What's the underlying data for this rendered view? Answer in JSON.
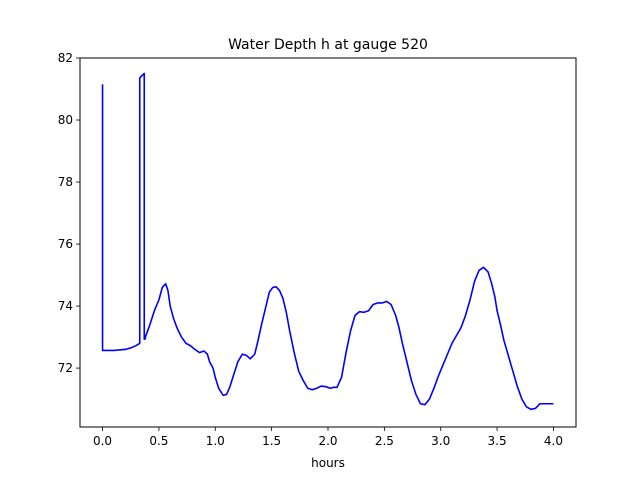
{
  "chart_data": {
    "type": "line",
    "title": "Water Depth h at gauge 520",
    "xlabel": "hours",
    "ylabel": "",
    "xlim": [
      -0.2,
      4.2
    ],
    "ylim": [
      70.1,
      82.0
    ],
    "xticks": [
      0.0,
      0.5,
      1.0,
      1.5,
      2.0,
      2.5,
      3.0,
      3.5,
      4.0
    ],
    "xtick_labels": [
      "0.0",
      "0.5",
      "1.0",
      "1.5",
      "2.0",
      "2.5",
      "3.0",
      "3.5",
      "4.0"
    ],
    "yticks": [
      72,
      74,
      76,
      78,
      80,
      82
    ],
    "ytick_labels": [
      "72",
      "74",
      "76",
      "78",
      "80",
      "82"
    ],
    "grid": false,
    "series": [
      {
        "color": "#0000ff",
        "x": [
          0.0,
          0.0,
          0.0,
          0.1,
          0.2,
          0.25,
          0.3,
          0.33,
          0.33,
          0.34,
          0.37,
          0.37,
          0.38,
          0.38,
          0.42,
          0.46,
          0.5,
          0.53,
          0.56,
          0.58,
          0.6,
          0.63,
          0.66,
          0.7,
          0.74,
          0.78,
          0.82,
          0.86,
          0.9,
          0.93,
          0.95,
          0.98,
          1.0,
          1.03,
          1.07,
          1.1,
          1.13,
          1.16,
          1.2,
          1.24,
          1.28,
          1.31,
          1.35,
          1.38,
          1.41,
          1.45,
          1.48,
          1.51,
          1.54,
          1.57,
          1.6,
          1.63,
          1.66,
          1.7,
          1.74,
          1.78,
          1.82,
          1.86,
          1.9,
          1.94,
          1.98,
          2.02,
          2.05,
          2.08,
          2.12,
          2.16,
          2.2,
          2.24,
          2.28,
          2.32,
          2.36,
          2.4,
          2.44,
          2.48,
          2.52,
          2.56,
          2.6,
          2.63,
          2.66,
          2.7,
          2.74,
          2.78,
          2.82,
          2.86,
          2.9,
          2.94,
          2.98,
          3.02,
          3.06,
          3.1,
          3.14,
          3.18,
          3.22,
          3.26,
          3.3,
          3.34,
          3.38,
          3.42,
          3.45,
          3.48,
          3.5,
          3.53,
          3.56,
          3.6,
          3.64,
          3.68,
          3.72,
          3.76,
          3.8,
          3.84,
          3.88,
          3.92,
          3.96,
          4.0
        ],
        "y": [
          81.15,
          81.1,
          72.57,
          72.57,
          72.6,
          72.65,
          72.73,
          72.8,
          81.35,
          81.4,
          81.5,
          72.93,
          72.95,
          73.0,
          73.4,
          73.85,
          74.2,
          74.6,
          74.72,
          74.5,
          74.0,
          73.6,
          73.3,
          73.0,
          72.8,
          72.72,
          72.6,
          72.5,
          72.55,
          72.45,
          72.2,
          72.0,
          71.7,
          71.35,
          71.12,
          71.15,
          71.4,
          71.75,
          72.2,
          72.45,
          72.4,
          72.3,
          72.45,
          72.9,
          73.4,
          74.0,
          74.45,
          74.6,
          74.62,
          74.5,
          74.25,
          73.8,
          73.2,
          72.5,
          71.9,
          71.6,
          71.35,
          71.3,
          71.35,
          71.42,
          71.4,
          71.35,
          71.38,
          71.38,
          71.7,
          72.5,
          73.2,
          73.7,
          73.82,
          73.8,
          73.85,
          74.05,
          74.1,
          74.1,
          74.15,
          74.05,
          73.7,
          73.3,
          72.8,
          72.2,
          71.6,
          71.15,
          70.85,
          70.82,
          71.0,
          71.35,
          71.75,
          72.1,
          72.45,
          72.8,
          73.05,
          73.3,
          73.7,
          74.2,
          74.8,
          75.15,
          75.25,
          75.1,
          74.75,
          74.3,
          73.85,
          73.4,
          72.9,
          72.4,
          71.9,
          71.4,
          71.0,
          70.75,
          70.67,
          70.7,
          70.85,
          70.85,
          70.85,
          70.85
        ]
      }
    ]
  }
}
